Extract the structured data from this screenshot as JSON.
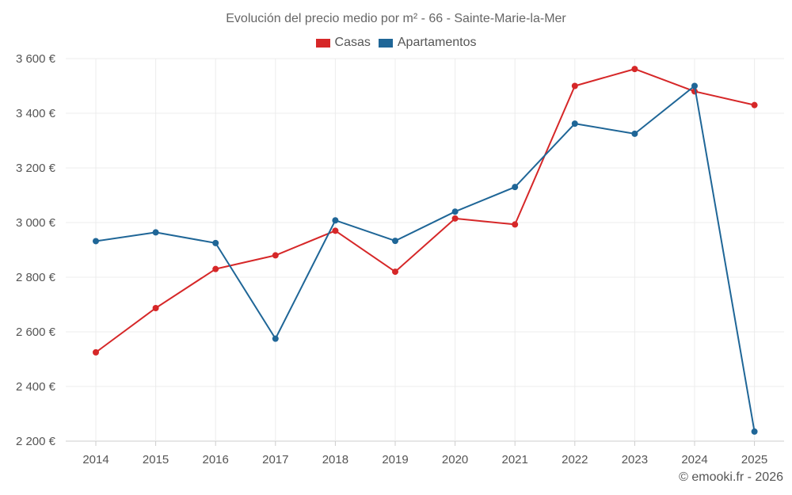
{
  "chart_data": {
    "type": "line",
    "title": "Evolución del precio medio por m² - 66 - Sainte-Marie-la-Mer",
    "xlabel": "",
    "ylabel": "",
    "categories": [
      "2014",
      "2015",
      "2016",
      "2017",
      "2018",
      "2019",
      "2020",
      "2021",
      "2022",
      "2023",
      "2024",
      "2025"
    ],
    "ylim": [
      2200,
      3600
    ],
    "yticks": [
      2200,
      2400,
      2600,
      2800,
      3000,
      3200,
      3400,
      3600
    ],
    "ytick_labels": [
      "2 200 €",
      "2 400 €",
      "2 600 €",
      "2 800 €",
      "3 000 €",
      "3 200 €",
      "3 400 €",
      "3 600 €"
    ],
    "grid": true,
    "legend_position": "top-center",
    "series": [
      {
        "name": "Casas",
        "color": "#d62728",
        "values": [
          2525,
          2687,
          2830,
          2880,
          2970,
          2820,
          3015,
          2993,
          3500,
          3562,
          3480,
          3430
        ]
      },
      {
        "name": "Apartamentos",
        "color": "#1f6697",
        "values": [
          2932,
          2964,
          2925,
          2575,
          3008,
          2933,
          3040,
          3130,
          3362,
          3325,
          3500,
          2235
        ]
      }
    ]
  },
  "footer": {
    "credit": "© emooki.fr - 2026"
  }
}
